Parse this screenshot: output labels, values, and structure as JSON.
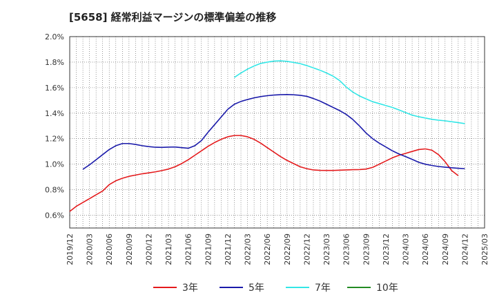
{
  "chart_data": {
    "type": "line",
    "title": "[5658]  経常利益マージンの標準偏差の推移",
    "xlabel": "",
    "ylabel": "",
    "ylim": [
      0.5,
      2.0
    ],
    "xlim": [
      "2019-12",
      "2025-03"
    ],
    "grid": true,
    "legend_position": "bottom",
    "y_ticks": [
      "0.6%",
      "0.8%",
      "1.0%",
      "1.2%",
      "1.4%",
      "1.6%",
      "1.8%",
      "2.0%"
    ],
    "x_ticks": [
      "2019/12",
      "2020/03",
      "2020/06",
      "2020/09",
      "2020/12",
      "2021/03",
      "2021/06",
      "2021/09",
      "2021/12",
      "2022/03",
      "2022/06",
      "2022/09",
      "2022/12",
      "2023/03",
      "2023/06",
      "2023/09",
      "2023/12",
      "2024/03",
      "2024/06",
      "2024/09",
      "2024/12",
      "2025/03"
    ],
    "series": [
      {
        "name": "3年",
        "color": "#e41a1c",
        "points": [
          [
            "2019-12",
            0.63
          ],
          [
            "2020-01",
            0.67
          ],
          [
            "2020-02",
            0.7
          ],
          [
            "2020-03",
            0.73
          ],
          [
            "2020-04",
            0.76
          ],
          [
            "2020-05",
            0.79
          ],
          [
            "2020-06",
            0.84
          ],
          [
            "2020-07",
            0.87
          ],
          [
            "2020-08",
            0.89
          ],
          [
            "2020-09",
            0.905
          ],
          [
            "2020-10",
            0.915
          ],
          [
            "2020-11",
            0.925
          ],
          [
            "2020-12",
            0.932
          ],
          [
            "2021-01",
            0.94
          ],
          [
            "2021-02",
            0.95
          ],
          [
            "2021-03",
            0.962
          ],
          [
            "2021-04",
            0.98
          ],
          [
            "2021-05",
            1.005
          ],
          [
            "2021-06",
            1.035
          ],
          [
            "2021-07",
            1.07
          ],
          [
            "2021-08",
            1.105
          ],
          [
            "2021-09",
            1.14
          ],
          [
            "2021-10",
            1.17
          ],
          [
            "2021-11",
            1.195
          ],
          [
            "2021-12",
            1.215
          ],
          [
            "2022-01",
            1.225
          ],
          [
            "2022-02",
            1.225
          ],
          [
            "2022-03",
            1.215
          ],
          [
            "2022-04",
            1.195
          ],
          [
            "2022-05",
            1.165
          ],
          [
            "2022-06",
            1.13
          ],
          [
            "2022-07",
            1.095
          ],
          [
            "2022-08",
            1.06
          ],
          [
            "2022-09",
            1.03
          ],
          [
            "2022-10",
            1.005
          ],
          [
            "2022-11",
            0.98
          ],
          [
            "2022-12",
            0.965
          ],
          [
            "2023-01",
            0.955
          ],
          [
            "2023-02",
            0.952
          ],
          [
            "2023-03",
            0.951
          ],
          [
            "2023-04",
            0.951
          ],
          [
            "2023-05",
            0.953
          ],
          [
            "2023-06",
            0.955
          ],
          [
            "2023-07",
            0.957
          ],
          [
            "2023-08",
            0.958
          ],
          [
            "2023-09",
            0.962
          ],
          [
            "2023-10",
            0.975
          ],
          [
            "2023-11",
            1.0
          ],
          [
            "2023-12",
            1.025
          ],
          [
            "2024-01",
            1.05
          ],
          [
            "2024-02",
            1.07
          ],
          [
            "2024-03",
            1.085
          ],
          [
            "2024-04",
            1.1
          ],
          [
            "2024-05",
            1.115
          ],
          [
            "2024-06",
            1.12
          ],
          [
            "2024-07",
            1.11
          ],
          [
            "2024-08",
            1.075
          ],
          [
            "2024-09",
            1.02
          ],
          [
            "2024-10",
            0.95
          ],
          [
            "2024-11",
            0.91
          ]
        ]
      },
      {
        "name": "5年",
        "color": "#1a1aaa",
        "points": [
          [
            "2020-02",
            0.96
          ],
          [
            "2020-03",
            0.995
          ],
          [
            "2020-04",
            1.035
          ],
          [
            "2020-05",
            1.075
          ],
          [
            "2020-06",
            1.115
          ],
          [
            "2020-07",
            1.145
          ],
          [
            "2020-08",
            1.162
          ],
          [
            "2020-09",
            1.162
          ],
          [
            "2020-10",
            1.155
          ],
          [
            "2020-11",
            1.145
          ],
          [
            "2020-12",
            1.138
          ],
          [
            "2021-01",
            1.133
          ],
          [
            "2021-02",
            1.132
          ],
          [
            "2021-03",
            1.134
          ],
          [
            "2021-04",
            1.135
          ],
          [
            "2021-05",
            1.13
          ],
          [
            "2021-06",
            1.125
          ],
          [
            "2021-07",
            1.145
          ],
          [
            "2021-08",
            1.185
          ],
          [
            "2021-09",
            1.25
          ],
          [
            "2021-10",
            1.31
          ],
          [
            "2021-11",
            1.37
          ],
          [
            "2021-12",
            1.43
          ],
          [
            "2022-01",
            1.47
          ],
          [
            "2022-02",
            1.492
          ],
          [
            "2022-03",
            1.507
          ],
          [
            "2022-04",
            1.52
          ],
          [
            "2022-05",
            1.53
          ],
          [
            "2022-06",
            1.537
          ],
          [
            "2022-07",
            1.542
          ],
          [
            "2022-08",
            1.545
          ],
          [
            "2022-09",
            1.546
          ],
          [
            "2022-10",
            1.544
          ],
          [
            "2022-11",
            1.54
          ],
          [
            "2022-12",
            1.532
          ],
          [
            "2023-01",
            1.515
          ],
          [
            "2023-02",
            1.495
          ],
          [
            "2023-03",
            1.47
          ],
          [
            "2023-04",
            1.445
          ],
          [
            "2023-05",
            1.42
          ],
          [
            "2023-06",
            1.39
          ],
          [
            "2023-07",
            1.35
          ],
          [
            "2023-08",
            1.3
          ],
          [
            "2023-09",
            1.245
          ],
          [
            "2023-10",
            1.2
          ],
          [
            "2023-11",
            1.165
          ],
          [
            "2023-12",
            1.135
          ],
          [
            "2024-01",
            1.105
          ],
          [
            "2024-02",
            1.08
          ],
          [
            "2024-03",
            1.06
          ],
          [
            "2024-04",
            1.038
          ],
          [
            "2024-05",
            1.015
          ],
          [
            "2024-06",
            1.0
          ],
          [
            "2024-07",
            0.99
          ],
          [
            "2024-08",
            0.982
          ],
          [
            "2024-09",
            0.977
          ],
          [
            "2024-10",
            0.972
          ],
          [
            "2024-11",
            0.968
          ],
          [
            "2024-12",
            0.965
          ]
        ]
      },
      {
        "name": "7年",
        "color": "#33e6e6",
        "points": [
          [
            "2022-01",
            1.68
          ],
          [
            "2022-02",
            1.715
          ],
          [
            "2022-03",
            1.745
          ],
          [
            "2022-04",
            1.77
          ],
          [
            "2022-05",
            1.79
          ],
          [
            "2022-06",
            1.8
          ],
          [
            "2022-07",
            1.808
          ],
          [
            "2022-08",
            1.81
          ],
          [
            "2022-09",
            1.806
          ],
          [
            "2022-10",
            1.798
          ],
          [
            "2022-11",
            1.788
          ],
          [
            "2022-12",
            1.773
          ],
          [
            "2023-01",
            1.755
          ],
          [
            "2023-02",
            1.737
          ],
          [
            "2023-03",
            1.715
          ],
          [
            "2023-04",
            1.69
          ],
          [
            "2023-05",
            1.655
          ],
          [
            "2023-06",
            1.605
          ],
          [
            "2023-07",
            1.565
          ],
          [
            "2023-08",
            1.535
          ],
          [
            "2023-09",
            1.512
          ],
          [
            "2023-10",
            1.49
          ],
          [
            "2023-11",
            1.475
          ],
          [
            "2023-12",
            1.46
          ],
          [
            "2024-01",
            1.445
          ],
          [
            "2024-02",
            1.425
          ],
          [
            "2024-03",
            1.405
          ],
          [
            "2024-04",
            1.385
          ],
          [
            "2024-05",
            1.372
          ],
          [
            "2024-06",
            1.362
          ],
          [
            "2024-07",
            1.352
          ],
          [
            "2024-08",
            1.345
          ],
          [
            "2024-09",
            1.34
          ],
          [
            "2024-10",
            1.333
          ],
          [
            "2024-11",
            1.326
          ],
          [
            "2024-12",
            1.318
          ]
        ]
      },
      {
        "name": "10年",
        "color": "#228b22",
        "points": []
      }
    ]
  }
}
